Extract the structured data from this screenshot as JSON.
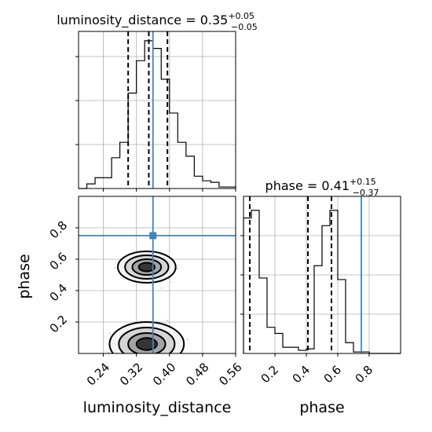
{
  "chart_data": {
    "type": "corner",
    "truth_color": "#4682b4",
    "truth": {
      "luminosity_distance": 0.36,
      "phase": 0.75
    },
    "axes": {
      "luminosity_distance": {
        "label": "luminosity_distance",
        "range": [
          0.18,
          0.56
        ],
        "ticks": [
          0.24,
          0.32,
          0.4,
          0.48,
          0.56
        ],
        "tick_labels": [
          "0.24",
          "0.32",
          "0.40",
          "0.48",
          "0.56"
        ]
      },
      "phase": {
        "label": "phase",
        "range": [
          0.0,
          1.0
        ],
        "ticks": [
          0.2,
          0.4,
          0.6,
          0.8
        ],
        "tick_labels": [
          "0.2",
          "0.4",
          "0.6",
          "0.8"
        ]
      }
    },
    "marginals": [
      {
        "parameter": "luminosity_distance",
        "title_prefix": "luminosity_distance = ",
        "median": "0.35",
        "plus": "+0.05",
        "minus": "−0.05",
        "quantiles": [
          0.3,
          0.35,
          0.395
        ],
        "bin_edges": [
          0.18,
          0.2,
          0.22,
          0.24,
          0.26,
          0.28,
          0.3,
          0.32,
          0.34,
          0.36,
          0.38,
          0.4,
          0.42,
          0.44,
          0.46,
          0.48,
          0.5,
          0.52,
          0.54,
          0.56
        ],
        "counts": [
          0,
          0.03,
          0.07,
          0.07,
          0.2,
          0.3,
          0.62,
          0.83,
          0.96,
          0.91,
          0.71,
          0.49,
          0.3,
          0.21,
          0.08,
          0.05,
          0.04,
          0.01,
          0.01
        ]
      },
      {
        "parameter": "phase",
        "title_prefix": "phase = ",
        "median": "0.41",
        "plus": "+0.15",
        "minus": "−0.37",
        "quantiles": [
          0.04,
          0.41,
          0.56
        ],
        "bin_edges": [
          0.0,
          0.05,
          0.1,
          0.15,
          0.2,
          0.25,
          0.3,
          0.35,
          0.4,
          0.45,
          0.5,
          0.55,
          0.6,
          0.65,
          0.7,
          0.75,
          0.8,
          0.85,
          0.9,
          0.95,
          1.0
        ],
        "counts": [
          0.88,
          0.93,
          0.49,
          0.17,
          0.13,
          0.04,
          0.04,
          0.02,
          0.03,
          0.57,
          0.83,
          0.93,
          0.48,
          0.07,
          0.01,
          0.01,
          0,
          0,
          0,
          0
        ]
      }
    ],
    "joint": {
      "x": "luminosity_distance",
      "y": "phase",
      "modes": [
        {
          "x": 0.345,
          "y": 0.55,
          "sx": 0.035,
          "sy": 0.05,
          "weight": 1.0
        },
        {
          "x": 0.345,
          "y": 0.06,
          "sx": 0.045,
          "sy": 0.07,
          "weight": 1.1
        }
      ]
    }
  }
}
